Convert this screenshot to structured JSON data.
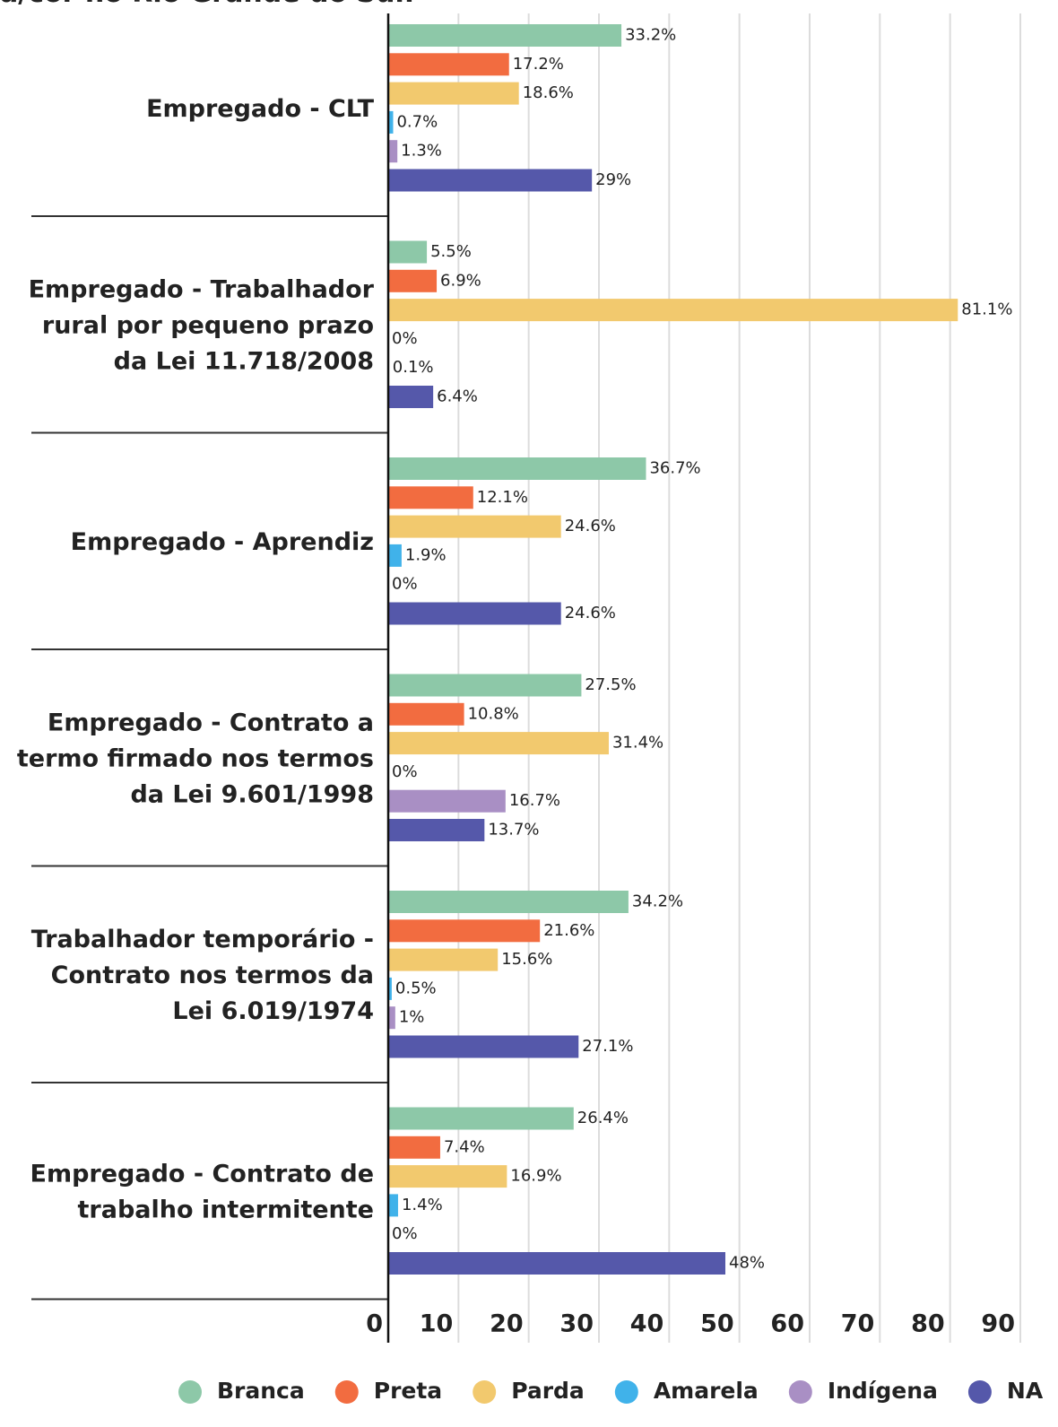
{
  "chart_data": {
    "type": "barh",
    "title": "a/cor no Rio Grande do Sul.",
    "categories": [
      "Empregado - CLT",
      "Empregado - Trabalhador\nrural por pequeno prazo\nda Lei 11.718/2008",
      "Empregado - Aprendiz",
      "Empregado - Contrato a\ntermo firmado nos termos\nda Lei 9.601/1998",
      "Trabalhador temporário -\nContrato nos termos da\nLei 6.019/1974",
      "Empregado - Contrato de\ntrabalho intermitente"
    ],
    "series": [
      {
        "name": "Branca",
        "color": "#8dc8a8",
        "values": [
          33.2,
          5.5,
          36.7,
          27.5,
          34.2,
          26.4
        ],
        "value_labels": [
          "33.2%",
          "5.5%",
          "36.7%",
          "27.5%",
          "34.2%",
          "26.4%"
        ]
      },
      {
        "name": "Preta",
        "color": "#f26c40",
        "values": [
          17.2,
          6.9,
          12.1,
          10.8,
          21.6,
          7.4
        ],
        "value_labels": [
          "17.2%",
          "6.9%",
          "12.1%",
          "10.8%",
          "21.6%",
          "7.4%"
        ]
      },
      {
        "name": "Parda",
        "color": "#f2c96e",
        "values": [
          18.6,
          81.1,
          24.6,
          31.4,
          15.6,
          16.9
        ],
        "value_labels": [
          "18.6%",
          "81.1%",
          "24.6%",
          "31.4%",
          "15.6%",
          "16.9%"
        ]
      },
      {
        "name": "Amarela",
        "color": "#40b2ea",
        "values": [
          0.7,
          0,
          1.9,
          0,
          0.5,
          1.4
        ],
        "value_labels": [
          "0.7%",
          "0%",
          "1.9%",
          "0%",
          "0.5%",
          "1.4%"
        ]
      },
      {
        "name": "Indígena",
        "color": "#a98fc4",
        "values": [
          1.3,
          0.1,
          0,
          16.7,
          1,
          0
        ],
        "value_labels": [
          "1.3%",
          "0.1%",
          "0%",
          "16.7%",
          "1%",
          "0%"
        ]
      },
      {
        "name": "NA",
        "color": "#5558aa",
        "values": [
          29,
          6.4,
          24.6,
          13.7,
          27.1,
          48
        ],
        "value_labels": [
          "29%",
          "6.4%",
          "24.6%",
          "13.7%",
          "27.1%",
          "48%"
        ]
      }
    ],
    "xlim": [
      0,
      90
    ],
    "xticks": [
      0,
      10,
      20,
      30,
      40,
      50,
      60,
      70,
      80,
      90
    ],
    "grid": true
  }
}
